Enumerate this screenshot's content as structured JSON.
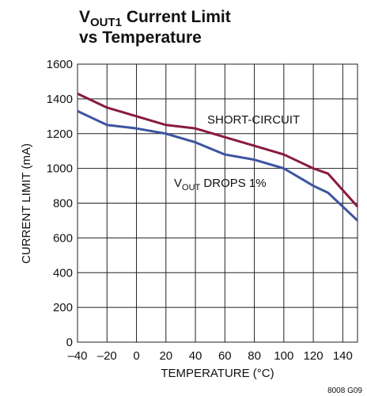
{
  "chart_data": {
    "type": "line",
    "title": {
      "lines": [
        [
          "V",
          "OUT1",
          " Current Limit"
        ],
        [
          "vs Temperature"
        ]
      ]
    },
    "xlabel": "TEMPERATURE (°C)",
    "ylabel": "CURRENT LIMIT (mA)",
    "x": [
      -40,
      -20,
      0,
      20,
      40,
      60,
      80,
      100,
      120,
      130,
      150
    ],
    "series": [
      {
        "color": "#8a1b3c",
        "values": [
          1430,
          1350,
          1300,
          1250,
          1230,
          1180,
          1130,
          1080,
          1000,
          970,
          780
        ]
      },
      {
        "color": "#3b55a0",
        "values": [
          1330,
          1250,
          1230,
          1200,
          1150,
          1080,
          1050,
          1000,
          900,
          860,
          700
        ]
      }
    ],
    "annotations": [
      [
        "SHORT-CIRCUIT"
      ],
      [
        "V",
        "OUT",
        " DROPS 1%"
      ]
    ],
    "footnote": "8008 G09",
    "xlim": [
      -40,
      150
    ],
    "xticks": [
      {
        "value": -40,
        "label": "–40"
      },
      {
        "value": -20,
        "label": "–20"
      },
      0,
      20,
      40,
      60,
      80,
      100,
      120,
      140
    ],
    "ylim": [
      0,
      1600
    ],
    "yticks": [
      0,
      200,
      400,
      600,
      800,
      1000,
      1200,
      1400,
      1600
    ],
    "grid": true
  }
}
